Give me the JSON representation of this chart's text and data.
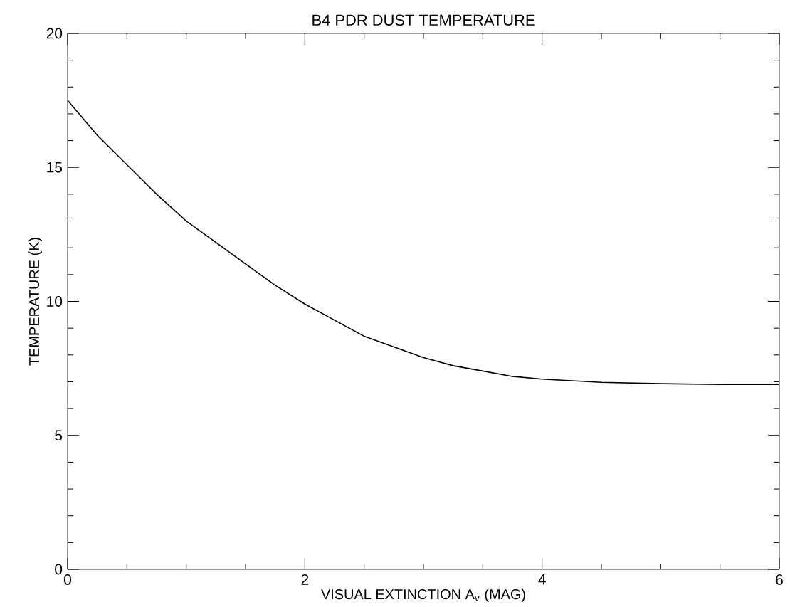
{
  "chart_data": {
    "type": "line",
    "title": "B4 PDR DUST TEMPERATURE",
    "xlabel": "VISUAL EXTINCTION A$_{v}$ (MAG)",
    "ylabel": "TEMPERATURE (K)",
    "x": [
      0,
      0.25,
      0.5,
      0.75,
      1,
      1.25,
      1.5,
      1.75,
      2,
      2.25,
      2.5,
      2.75,
      3,
      3.25,
      3.5,
      3.75,
      4,
      4.5,
      5,
      5.5,
      6
    ],
    "values": [
      17.5,
      16.2,
      15.1,
      14.0,
      13.0,
      12.2,
      11.4,
      10.6,
      9.9,
      9.3,
      8.7,
      8.3,
      7.9,
      7.6,
      7.4,
      7.2,
      7.1,
      6.98,
      6.93,
      6.9,
      6.9
    ],
    "color": "#000000",
    "marker": "none",
    "line_style": "solid",
    "xlim": [
      0,
      6
    ],
    "ylim": [
      0,
      20
    ],
    "xticks": [
      0,
      2,
      4,
      6
    ],
    "yticks": [
      0,
      5,
      10,
      15,
      20
    ]
  }
}
